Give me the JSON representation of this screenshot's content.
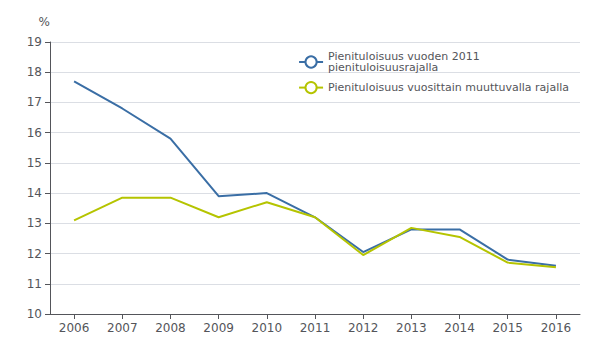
{
  "chart_data": {
    "type": "line",
    "ylabel": "%",
    "x": [
      2006,
      2007,
      2008,
      2009,
      2010,
      2011,
      2012,
      2013,
      2014,
      2015,
      2016
    ],
    "xlim": [
      2005.5,
      2016.5
    ],
    "xticks": [
      2006,
      2007,
      2008,
      2009,
      2010,
      2011,
      2012,
      2013,
      2014,
      2015,
      2016
    ],
    "ylim": [
      10,
      19
    ],
    "yticks": [
      10,
      11,
      12,
      13,
      14,
      15,
      16,
      17,
      18,
      19
    ],
    "grid": true,
    "legend": "upper right",
    "series": [
      {
        "name": "Pienituloisuus vuoden 2011\npienituloisuusrajalla",
        "color": "#3a6ea5",
        "values": [
          17.7,
          16.8,
          15.8,
          13.9,
          14.0,
          13.2,
          12.05,
          12.8,
          12.8,
          11.8,
          11.6
        ]
      },
      {
        "name": "Pienituloisuus vuosittain muuttuvalla rajalla",
        "color": "#b5c400",
        "values": [
          13.1,
          13.85,
          13.85,
          13.2,
          13.7,
          13.2,
          11.95,
          12.85,
          12.55,
          11.7,
          11.55
        ]
      }
    ]
  }
}
